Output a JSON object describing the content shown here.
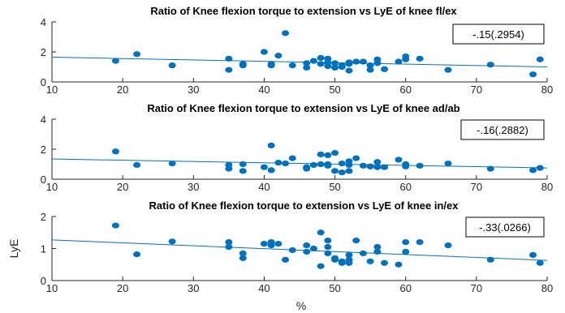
{
  "chart_data": [
    {
      "type": "scatter",
      "title": "Ratio of Knee flexion torque to extension vs  LyE of knee fl/ex",
      "xlabel": "",
      "ylabel": "",
      "xlim": [
        10,
        80
      ],
      "ylim": [
        0,
        4
      ],
      "xticks": [
        "10",
        "20",
        "30",
        "40",
        "50",
        "60",
        "70",
        "80"
      ],
      "yticks": [
        "0",
        "2",
        "4"
      ],
      "annotation": "-.15(.2954)",
      "color": "#0072BD",
      "trend": {
        "x0": 10,
        "y0": 1.65,
        "x1": 80,
        "y1": 1.0
      },
      "points": [
        [
          19,
          1.4
        ],
        [
          22,
          1.85
        ],
        [
          27,
          1.1
        ],
        [
          35,
          1.55
        ],
        [
          35,
          0.8
        ],
        [
          37,
          1.2
        ],
        [
          37,
          1.1
        ],
        [
          40,
          2.0
        ],
        [
          41,
          1.1
        ],
        [
          41,
          1.2
        ],
        [
          42,
          1.75
        ],
        [
          43,
          3.25
        ],
        [
          44,
          1.1
        ],
        [
          46,
          1.25
        ],
        [
          46,
          0.95
        ],
        [
          47,
          1.4
        ],
        [
          48,
          1.6
        ],
        [
          48,
          1.2
        ],
        [
          49,
          1.55
        ],
        [
          49,
          1.3
        ],
        [
          49,
          1.05
        ],
        [
          50,
          1.25
        ],
        [
          50,
          0.95
        ],
        [
          51,
          1.1
        ],
        [
          51,
          1.0
        ],
        [
          52,
          1.3
        ],
        [
          52,
          1.2
        ],
        [
          52,
          0.75
        ],
        [
          53,
          1.35
        ],
        [
          54,
          1.35
        ],
        [
          55,
          1.1
        ],
        [
          55,
          0.8
        ],
        [
          56,
          1.5
        ],
        [
          56,
          1.25
        ],
        [
          57,
          0.85
        ],
        [
          59,
          1.35
        ],
        [
          60,
          1.7
        ],
        [
          60,
          1.5
        ],
        [
          62,
          1.55
        ],
        [
          66,
          0.8
        ],
        [
          72,
          1.15
        ],
        [
          78,
          0.5
        ],
        [
          79,
          1.5
        ]
      ]
    },
    {
      "type": "scatter",
      "title": "Ratio of Knee flexion torque to extension  vs  LyE of knee ad/ab",
      "xlabel": "",
      "ylabel": "",
      "xlim": [
        10,
        80
      ],
      "ylim": [
        0,
        4
      ],
      "xticks": [
        "10",
        "20",
        "30",
        "40",
        "50",
        "60",
        "70",
        "80"
      ],
      "yticks": [
        "0",
        "2",
        "4"
      ],
      "annotation": "-.16(.2882)",
      "color": "#0072BD",
      "trend": {
        "x0": 10,
        "y0": 1.35,
        "x1": 80,
        "y1": 0.75
      },
      "points": [
        [
          19,
          1.85
        ],
        [
          22,
          0.95
        ],
        [
          27,
          1.05
        ],
        [
          35,
          0.95
        ],
        [
          35,
          0.7
        ],
        [
          37,
          1.0
        ],
        [
          37,
          0.55
        ],
        [
          40,
          0.8
        ],
        [
          41,
          2.25
        ],
        [
          41,
          0.6
        ],
        [
          42,
          1.1
        ],
        [
          43,
          1.05
        ],
        [
          44,
          1.4
        ],
        [
          46,
          0.8
        ],
        [
          46,
          0.7
        ],
        [
          47,
          0.95
        ],
        [
          48,
          1.65
        ],
        [
          48,
          1.0
        ],
        [
          49,
          1.6
        ],
        [
          49,
          1.0
        ],
        [
          49,
          0.9
        ],
        [
          50,
          1.75
        ],
        [
          50,
          0.55
        ],
        [
          51,
          0.45
        ],
        [
          51,
          1.05
        ],
        [
          52,
          1.2
        ],
        [
          52,
          0.95
        ],
        [
          52,
          0.55
        ],
        [
          53,
          1.4
        ],
        [
          54,
          0.9
        ],
        [
          55,
          0.85
        ],
        [
          56,
          1.15
        ],
        [
          56,
          0.8
        ],
        [
          57,
          0.8
        ],
        [
          59,
          1.3
        ],
        [
          60,
          1.0
        ],
        [
          60,
          0.85
        ],
        [
          62,
          0.9
        ],
        [
          66,
          1.05
        ],
        [
          72,
          0.7
        ],
        [
          78,
          0.6
        ],
        [
          79,
          0.75
        ]
      ]
    },
    {
      "type": "scatter",
      "title": "Ratio of Knee flexion torque to extension  vs  LyE of knee in/ex",
      "xlabel": "%",
      "ylabel": "LyE",
      "xlim": [
        10,
        80
      ],
      "ylim": [
        0,
        2
      ],
      "xticks": [
        "10",
        "20",
        "30",
        "40",
        "50",
        "60",
        "70",
        "80"
      ],
      "yticks": [
        "0",
        "1",
        "2"
      ],
      "annotation": "-.33(.0266)",
      "color": "#0072BD",
      "trend": {
        "x0": 10,
        "y0": 1.27,
        "x1": 80,
        "y1": 0.63
      },
      "points": [
        [
          19,
          1.72
        ],
        [
          22,
          0.82
        ],
        [
          27,
          1.22
        ],
        [
          35,
          1.2
        ],
        [
          35,
          1.05
        ],
        [
          37,
          0.85
        ],
        [
          37,
          0.7
        ],
        [
          40,
          1.15
        ],
        [
          41,
          1.2
        ],
        [
          41,
          1.1
        ],
        [
          42,
          1.15
        ],
        [
          43,
          0.65
        ],
        [
          44,
          0.95
        ],
        [
          46,
          1.1
        ],
        [
          46,
          0.9
        ],
        [
          47,
          1.0
        ],
        [
          48,
          1.5
        ],
        [
          48,
          0.45
        ],
        [
          49,
          1.25
        ],
        [
          49,
          1.05
        ],
        [
          49,
          0.85
        ],
        [
          50,
          0.7
        ],
        [
          50,
          0.65
        ],
        [
          51,
          0.6
        ],
        [
          51,
          0.55
        ],
        [
          52,
          0.8
        ],
        [
          52,
          0.65
        ],
        [
          52,
          0.55
        ],
        [
          53,
          1.25
        ],
        [
          54,
          0.85
        ],
        [
          55,
          0.6
        ],
        [
          56,
          1.05
        ],
        [
          56,
          0.9
        ],
        [
          57,
          0.55
        ],
        [
          59,
          0.5
        ],
        [
          60,
          1.2
        ],
        [
          60,
          0.9
        ],
        [
          62,
          1.2
        ],
        [
          66,
          1.1
        ],
        [
          72,
          0.65
        ],
        [
          78,
          0.8
        ],
        [
          79,
          0.55
        ]
      ]
    }
  ]
}
